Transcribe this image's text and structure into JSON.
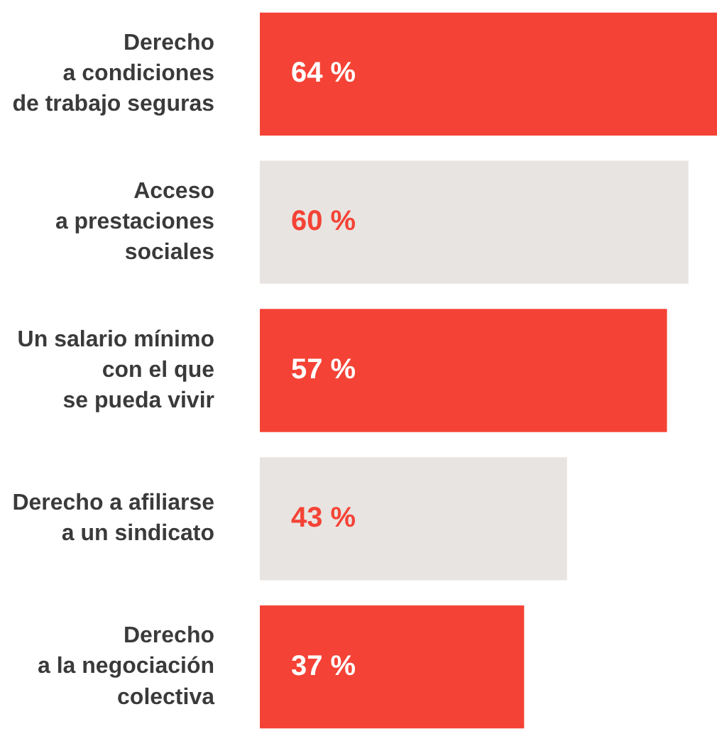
{
  "chart_data": {
    "type": "bar",
    "orientation": "horizontal",
    "categories": [
      "Derecho\na condiciones\nde trabajo seguras",
      "Acceso\na prestaciones\nsociales",
      "Un salario mínimo\ncon el que\nse pueda vivir",
      "Derecho a afiliarse\na un sindicato",
      "Derecho\na la negociación\ncolectiva"
    ],
    "values": [
      64,
      60,
      57,
      43,
      37
    ],
    "colors": [
      "#f44336",
      "#e8e4e1",
      "#f44336",
      "#e8e4e1",
      "#f44336"
    ],
    "value_labels": [
      "64 %",
      "60 %",
      "57 %",
      "43 %",
      "37 %"
    ],
    "xlim": [
      0,
      64
    ],
    "legend": false,
    "tick_labels": "y"
  }
}
